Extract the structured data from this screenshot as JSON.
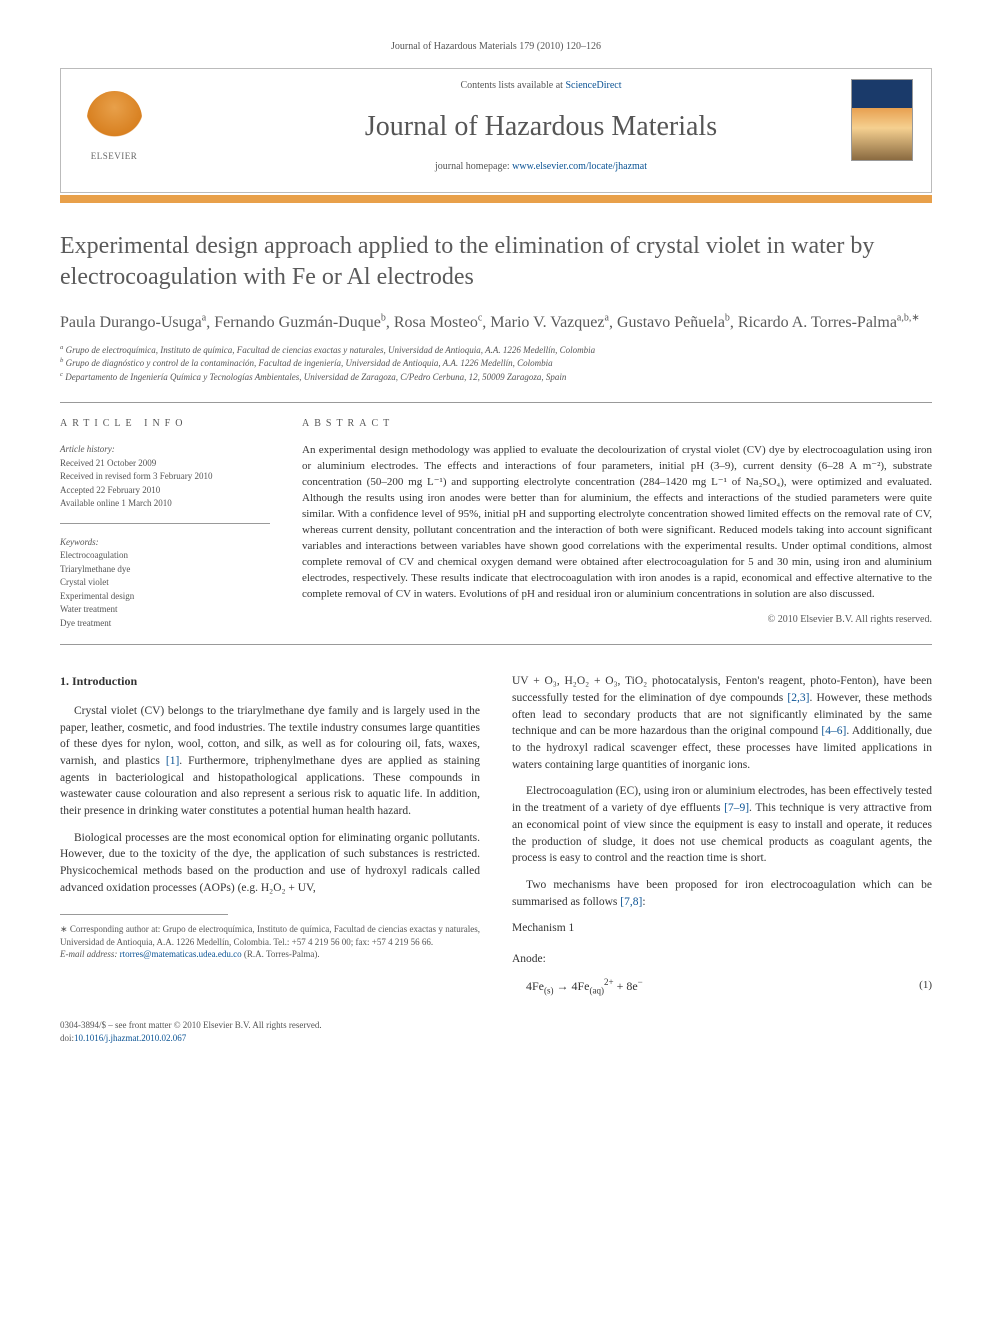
{
  "running_header": "Journal of Hazardous Materials 179 (2010) 120–126",
  "masthead": {
    "contents_text": "Contents lists available at ",
    "contents_link": "ScienceDirect",
    "journal_name": "Journal of Hazardous Materials",
    "homepage_text": "journal homepage: ",
    "homepage_link": "www.elsevier.com/locate/jhazmat",
    "publisher_label": "ELSEVIER"
  },
  "title": "Experimental design approach applied to the elimination of crystal violet in water by electrocoagulation with Fe or Al electrodes",
  "authors_html": "Paula Durango-Usuga<sup>a</sup>, Fernando Guzmán-Duque<sup>b</sup>, Rosa Mosteo<sup>c</sup>, Mario V. Vazquez<sup>a</sup>, Gustavo Peñuela<sup>b</sup>, Ricardo A. Torres-Palma<sup>a,b,∗</sup>",
  "affiliations": {
    "a": "Grupo de electroquímica, Instituto de química, Facultad de ciencias exactas y naturales, Universidad de Antioquia, A.A. 1226 Medellín, Colombia",
    "b": "Grupo de diagnóstico y control de la contaminación, Facultad de ingeniería, Universidad de Antioquia, A.A. 1226 Medellín, Colombia",
    "c": "Departamento de Ingeniería Química y Tecnologías Ambientales, Universidad de Zaragoza, C/Pedro Cerbuna, 12, 50009 Zaragoza, Spain"
  },
  "article_info": {
    "heading": "ARTICLE INFO",
    "history_label": "Article history:",
    "received": "Received 21 October 2009",
    "revised": "Received in revised form 3 February 2010",
    "accepted": "Accepted 22 February 2010",
    "online": "Available online 1 March 2010",
    "keywords_label": "Keywords:",
    "keywords": [
      "Electrocoagulation",
      "Triarylmethane dye",
      "Crystal violet",
      "Experimental design",
      "Water treatment",
      "Dye treatment"
    ]
  },
  "abstract": {
    "heading": "ABSTRACT",
    "text": "An experimental design methodology was applied to evaluate the decolourization of crystal violet (CV) dye by electrocoagulation using iron or aluminium electrodes. The effects and interactions of four parameters, initial pH (3–9), current density (6–28 A m⁻²), substrate concentration (50–200 mg L⁻¹) and supporting electrolyte concentration (284–1420 mg L⁻¹ of Na₂SO₄), were optimized and evaluated. Although the results using iron anodes were better than for aluminium, the effects and interactions of the studied parameters were quite similar. With a confidence level of 95%, initial pH and supporting electrolyte concentration showed limited effects on the removal rate of CV, whereas current density, pollutant concentration and the interaction of both were significant. Reduced models taking into account significant variables and interactions between variables have shown good correlations with the experimental results. Under optimal conditions, almost complete removal of CV and chemical oxygen demand were obtained after electrocoagulation for 5 and 30 min, using iron and aluminium electrodes, respectively. These results indicate that electrocoagulation with iron anodes is a rapid, economical and effective alternative to the complete removal of CV in waters. Evolutions of pH and residual iron or aluminium concentrations in solution are also discussed.",
    "copyright": "© 2010 Elsevier B.V. All rights reserved."
  },
  "body": {
    "intro_heading": "1. Introduction",
    "p1": "Crystal violet (CV) belongs to the triarylmethane dye family and is largely used in the paper, leather, cosmetic, and food industries. The textile industry consumes large quantities of these dyes for nylon, wool, cotton, and silk, as well as for colouring oil, fats, waxes, varnish, and plastics [1]. Furthermore, triphenylmethane dyes are applied as staining agents in bacteriological and histopathological applications. These compounds in wastewater cause colouration and also represent a serious risk to aquatic life. In addition, their presence in drinking water constitutes a potential human health hazard.",
    "p2": "Biological processes are the most economical option for eliminating organic pollutants. However, due to the toxicity of the dye, the application of such substances is restricted. Physicochemical methods based on the production and use of hydroxyl radicals called advanced oxidation processes (AOPs) (e.g. H₂O₂ + UV,",
    "p3": "UV + O₃, H₂O₂ + O₃, TiO₂ photocatalysis, Fenton's reagent, photo-Fenton), have been successfully tested for the elimination of dye compounds [2,3]. However, these methods often lead to secondary products that are not significantly eliminated by the same technique and can be more hazardous than the original compound [4–6]. Additionally, due to the hydroxyl radical scavenger effect, these processes have limited applications in waters containing large quantities of inorganic ions.",
    "p4": "Electrocoagulation (EC), using iron or aluminium electrodes, has been effectively tested in the treatment of a variety of dye effluents [7–9]. This technique is very attractive from an economical point of view since the equipment is easy to install and operate, it reduces the production of sludge, it does not use chemical products as coagulant agents, the process is easy to control and the reaction time is short.",
    "p5": "Two mechanisms have been proposed for iron electrocoagulation which can be summarised as follows [7,8]:",
    "mech_label": "Mechanism 1",
    "anode_label": "Anode:",
    "equation": "4Fe₍ₛ₎ → 4Fe₍ₐq₎²⁺ + 8e⁻",
    "eqnum": "(1)"
  },
  "footnote": {
    "corr": "∗ Corresponding author at: Grupo de electroquímica, Instituto de química, Facultad de ciencias exactas y naturales, Universidad de Antioquia, A.A. 1226 Medellín, Colombia. Tel.: +57 4 219 56 00; fax: +57 4 219 56 66.",
    "email_label": "E-mail address: ",
    "email": "rtorres@matematicas.udea.edu.co",
    "email_who": " (R.A. Torres-Palma)."
  },
  "bottom": {
    "issn": "0304-3894/$ – see front matter © 2010 Elsevier B.V. All rights reserved.",
    "doi_label": "doi:",
    "doi": "10.1016/j.jhazmat.2010.02.067"
  },
  "colors": {
    "accent_orange": "#e8a04a",
    "link_blue": "#0b5394",
    "rule_gray": "#999999",
    "text_gray": "#555555",
    "body_text": "#333333"
  }
}
